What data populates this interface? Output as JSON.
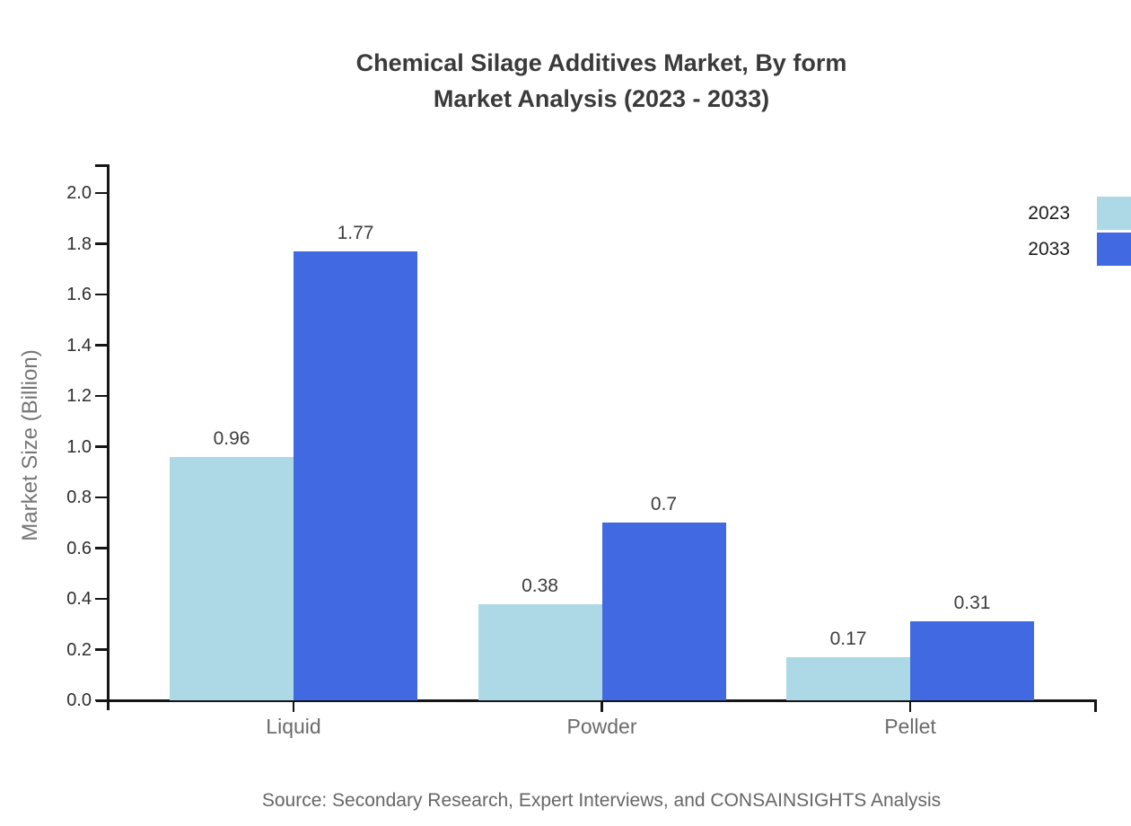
{
  "title": {
    "line1": "Chemical Silage Additives Market, By form",
    "line2": "Market Analysis (2023 - 2033)"
  },
  "source_note": "Source: Secondary Research, Expert Interviews, and CONSAINSIGHTS Analysis",
  "chart_data": {
    "type": "bar",
    "title": "Chemical Silage Additives Market, By form Market Analysis (2023 - 2033)",
    "categories": [
      "Liquid",
      "Powder",
      "Pellet"
    ],
    "series": [
      {
        "name": "2023",
        "color": "#ADD8E6",
        "values": [
          0.96,
          0.38,
          0.17
        ],
        "labels": [
          "0.96",
          "0.38",
          "0.17"
        ]
      },
      {
        "name": "2033",
        "color": "#4169E1",
        "values": [
          1.77,
          0.7,
          0.31
        ],
        "labels": [
          "1.77",
          "0.7",
          "0.31"
        ]
      }
    ],
    "xlabel": "",
    "ylabel": "Market Size (Billion)",
    "ylim": [
      0.0,
      2.1
    ],
    "yticks": [
      "0.0",
      "0.2",
      "0.4",
      "0.6",
      "0.8",
      "1.0",
      "1.2",
      "1.4",
      "1.6",
      "1.8",
      "2.0"
    ],
    "grid": false,
    "legend_position": "top-right",
    "bar_value_labels": true,
    "axis_color": "#151515"
  }
}
